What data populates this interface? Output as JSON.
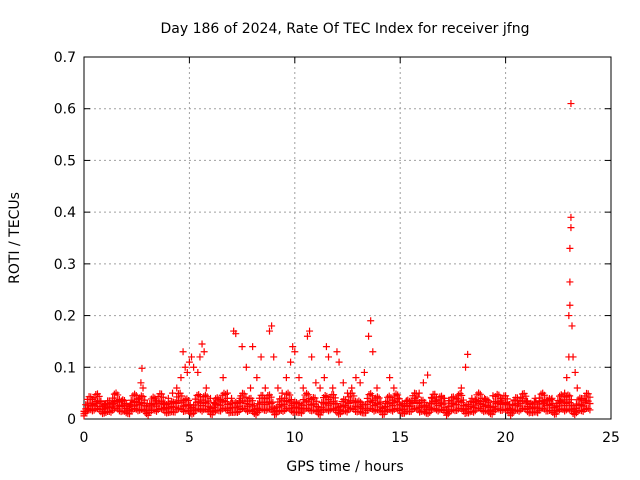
{
  "chart_data": {
    "type": "scatter",
    "title": "Day 186 of 2024, Rate Of TEC Index for receiver jfng",
    "xlabel": "GPS time / hours",
    "ylabel": "ROTI / TECUs",
    "xlim": [
      0,
      25
    ],
    "ylim": [
      0,
      0.7
    ],
    "x_ticks": [
      "0",
      "5",
      "10",
      "15",
      "20",
      "25"
    ],
    "y_ticks": [
      "0",
      "0.1",
      "0.2",
      "0.3",
      "0.4",
      "0.5",
      "0.6",
      "0.7"
    ],
    "grid": true,
    "marker": "plus",
    "color": "#ff0000",
    "series": [
      {
        "x": [
          0.0,
          0.2,
          0.4,
          0.6,
          0.8,
          1.0,
          1.2,
          1.4,
          1.6,
          1.8,
          2.0,
          2.2,
          2.4,
          2.6,
          2.7,
          2.75,
          2.8,
          3.0,
          3.2,
          3.4,
          3.6,
          3.8,
          4.0,
          4.2,
          4.4,
          4.6,
          4.7,
          4.8,
          4.9,
          5.0,
          5.1,
          5.2,
          5.4,
          5.5,
          5.6,
          5.7,
          5.8,
          6.0,
          6.2,
          6.4,
          6.6,
          6.8,
          7.0,
          7.1,
          7.2,
          7.4,
          7.5,
          7.7,
          7.9,
          8.0,
          8.2,
          8.4,
          8.6,
          8.8,
          8.9,
          9.0,
          9.2,
          9.4,
          9.6,
          9.8,
          9.9,
          10.0,
          10.2,
          10.4,
          10.6,
          10.7,
          10.8,
          11.0,
          11.2,
          11.4,
          11.5,
          11.6,
          11.8,
          12.0,
          12.1,
          12.3,
          12.5,
          12.7,
          12.9,
          13.1,
          13.3,
          13.5,
          13.6,
          13.7,
          13.9,
          14.3,
          14.5,
          14.7,
          14.9,
          15.1,
          15.3,
          15.5,
          15.7,
          15.9,
          16.1,
          16.3,
          16.5,
          16.7,
          16.9,
          17.1,
          17.3,
          17.5,
          17.7,
          17.9,
          18.1,
          18.2,
          18.4,
          18.6,
          18.8,
          19.0,
          19.2,
          19.4,
          19.6,
          19.8,
          20.0,
          20.2,
          20.4,
          20.6,
          20.8,
          21.0,
          21.2,
          21.4,
          21.6,
          21.8,
          22.0,
          22.2,
          22.4,
          22.6,
          22.8,
          22.9,
          23.0,
          23.0,
          23.05,
          23.05,
          23.05,
          23.1,
          23.1,
          23.1,
          23.15,
          23.2,
          23.3,
          23.4,
          23.6,
          23.8,
          24.0
        ],
        "y": [
          0.015,
          0.02,
          0.025,
          0.03,
          0.035,
          0.028,
          0.022,
          0.03,
          0.025,
          0.035,
          0.03,
          0.028,
          0.025,
          0.04,
          0.07,
          0.098,
          0.06,
          0.03,
          0.025,
          0.035,
          0.03,
          0.028,
          0.04,
          0.05,
          0.06,
          0.08,
          0.13,
          0.1,
          0.09,
          0.11,
          0.12,
          0.1,
          0.09,
          0.12,
          0.145,
          0.13,
          0.06,
          0.04,
          0.03,
          0.035,
          0.08,
          0.05,
          0.04,
          0.17,
          0.165,
          0.04,
          0.14,
          0.1,
          0.06,
          0.14,
          0.08,
          0.12,
          0.06,
          0.17,
          0.18,
          0.12,
          0.06,
          0.05,
          0.08,
          0.11,
          0.14,
          0.13,
          0.08,
          0.06,
          0.16,
          0.17,
          0.12,
          0.07,
          0.06,
          0.08,
          0.14,
          0.12,
          0.06,
          0.13,
          0.11,
          0.07,
          0.05,
          0.06,
          0.08,
          0.07,
          0.09,
          0.16,
          0.19,
          0.13,
          0.06,
          0.03,
          0.08,
          0.06,
          0.04,
          0.03,
          0.035,
          0.03,
          0.04,
          0.05,
          0.07,
          0.085,
          0.04,
          0.035,
          0.03,
          0.04,
          0.035,
          0.03,
          0.04,
          0.06,
          0.1,
          0.125,
          0.04,
          0.035,
          0.03,
          0.04,
          0.035,
          0.045,
          0.03,
          0.035,
          0.03,
          0.028,
          0.035,
          0.03,
          0.04,
          0.035,
          0.03,
          0.04,
          0.035,
          0.03,
          0.035,
          0.04,
          0.03,
          0.035,
          0.05,
          0.08,
          0.12,
          0.2,
          0.22,
          0.265,
          0.33,
          0.37,
          0.39,
          0.61,
          0.18,
          0.12,
          0.09,
          0.06,
          0.04,
          0.035,
          0.03
        ]
      }
    ]
  }
}
